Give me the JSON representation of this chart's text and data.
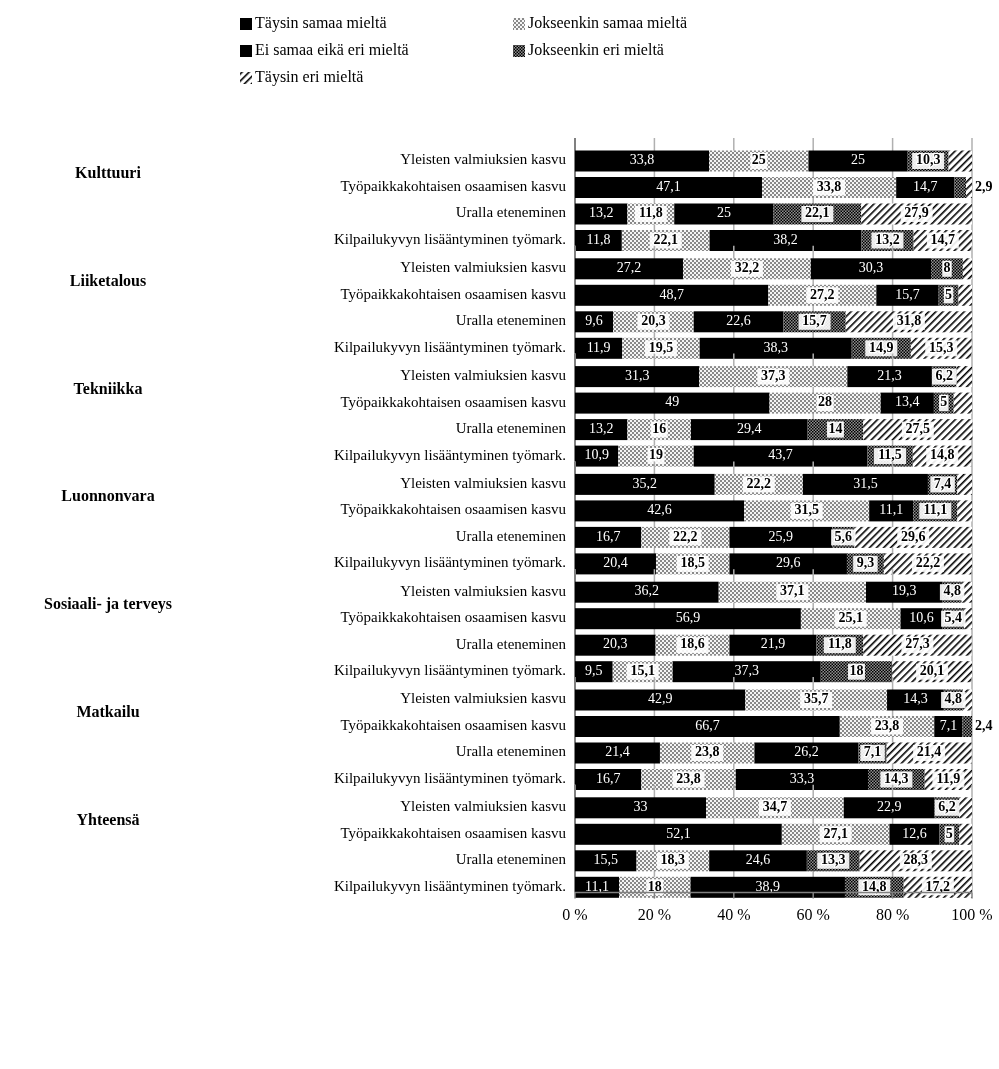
{
  "chart_data": [
    {
      "type": "bar",
      "orientation": "horizontal",
      "stacked": true,
      "ylabel": "Kulttuuri",
      "categories": [
        "Yleisten valmiuksien kasvu",
        "Työpaikkakohtaisen osaamisen kasvu",
        "Uralla eteneminen",
        "Kilpailukyvyn lisääntyminen työmark."
      ],
      "legend": "top",
      "grid": "x",
      "tick_labels": "y",
      "xlim": [
        0,
        100
      ],
      "xticks": [
        {
          "value": 0,
          "label": null
        },
        {
          "value": 20,
          "label": null
        },
        {
          "value": 40,
          "label": null
        },
        {
          "value": 60,
          "label": null
        },
        {
          "value": 80,
          "label": null
        },
        {
          "value": 100,
          "label": null
        }
      ],
      "series": [
        {
          "name": "Täysin samaa mieltä",
          "color": "#000000",
          "values": [
            33.8,
            47.1,
            13.2,
            11.8
          ],
          "value_labels": [
            "33,8",
            "47,1",
            "13,2",
            "11,8"
          ]
        },
        {
          "name": "Jokseenkin samaa mieltä",
          "color": "#e0e0e0",
          "values": [
            25,
            33.8,
            11.8,
            22.1
          ],
          "value_labels": [
            "25",
            "33,8",
            "11,8",
            "22,1"
          ]
        },
        {
          "name": "Ei samaa eikä eri mieltä",
          "color": "#000000",
          "values": [
            25,
            14.7,
            25,
            38.2
          ],
          "value_labels": [
            "25",
            "14,7",
            "25",
            "38,2"
          ]
        },
        {
          "name": "Jokseenkin eri mieltä",
          "color": "#909090",
          "values": [
            10.3,
            2.9,
            22.1,
            13.2
          ],
          "value_labels": [
            "10,3",
            "2,9",
            "22,1",
            "13,2"
          ]
        },
        {
          "name": "Täysin eri mieltä",
          "color": "#ffffff",
          "values": [
            5.9,
            1.5,
            27.9,
            14.7
          ],
          "value_labels": [
            null,
            null,
            "27,9",
            "14,7"
          ]
        }
      ]
    },
    {
      "type": "bar",
      "orientation": "horizontal",
      "stacked": true,
      "ylabel": "Liiketalous",
      "categories": [
        "Yleisten valmiuksien kasvu",
        "Työpaikkakohtaisen osaamisen kasvu",
        "Uralla eteneminen",
        "Kilpailukyvyn lisääntyminen työmark."
      ],
      "grid": "x",
      "tick_labels": "y",
      "xlim": [
        0,
        100
      ],
      "xticks": [
        {
          "value": 0,
          "label": null
        },
        {
          "value": 20,
          "label": null
        },
        {
          "value": 40,
          "label": null
        },
        {
          "value": 60,
          "label": null
        },
        {
          "value": 80,
          "label": null
        },
        {
          "value": 100,
          "label": null
        }
      ],
      "series": [
        {
          "color": "#000000",
          "values": [
            27.2,
            48.7,
            9.6,
            11.9
          ],
          "value_labels": [
            "27,2",
            "48,7",
            "9,6",
            "11,9"
          ]
        },
        {
          "color": "#e0e0e0",
          "values": [
            32.2,
            27.2,
            20.3,
            19.5
          ],
          "value_labels": [
            "32,2",
            "27,2",
            "20,3",
            "19,5"
          ]
        },
        {
          "color": "#000000",
          "values": [
            30.3,
            15.7,
            22.6,
            38.3
          ],
          "value_labels": [
            "30,3",
            "15,7",
            "22,6",
            "38,3"
          ]
        },
        {
          "color": "#909090",
          "values": [
            8,
            5,
            15.7,
            14.9
          ],
          "value_labels": [
            "8",
            "5",
            "15,7",
            "14,9"
          ]
        },
        {
          "color": "#ffffff",
          "values": [
            2.3,
            3.4,
            31.8,
            15.3
          ],
          "value_labels": [
            null,
            null,
            "31,8",
            "15,3"
          ]
        }
      ]
    },
    {
      "type": "bar",
      "orientation": "horizontal",
      "stacked": true,
      "ylabel": "Tekniikka",
      "categories": [
        "Yleisten valmiuksien kasvu",
        "Työpaikkakohtaisen osaamisen kasvu",
        "Uralla eteneminen",
        "Kilpailukyvyn lisääntyminen työmark."
      ],
      "grid": "x",
      "tick_labels": "y",
      "xlim": [
        0,
        100
      ],
      "xticks": [
        {
          "value": 0,
          "label": null
        },
        {
          "value": 20,
          "label": null
        },
        {
          "value": 40,
          "label": null
        },
        {
          "value": 60,
          "label": null
        },
        {
          "value": 80,
          "label": null
        },
        {
          "value": 100,
          "label": null
        }
      ],
      "series": [
        {
          "color": "#000000",
          "values": [
            31.3,
            49,
            13.2,
            10.9
          ],
          "value_labels": [
            "31,3",
            "49",
            "13,2",
            "10,9"
          ]
        },
        {
          "color": "#e0e0e0",
          "values": [
            37.3,
            28,
            16,
            19
          ],
          "value_labels": [
            "37,3",
            "28",
            "16",
            "19"
          ]
        },
        {
          "color": "#000000",
          "values": [
            21.3,
            13.4,
            29.4,
            43.7
          ],
          "value_labels": [
            "21,3",
            "13,4",
            "29,4",
            "43,7"
          ]
        },
        {
          "color": "#909090",
          "values": [
            6.2,
            5,
            14,
            11.5
          ],
          "value_labels": [
            "6,2",
            "5",
            "14",
            "11,5"
          ]
        },
        {
          "color": "#ffffff",
          "values": [
            3.9,
            4.6,
            27.5,
            14.8
          ],
          "value_labels": [
            null,
            null,
            "27,5",
            "14,8"
          ]
        }
      ]
    },
    {
      "type": "bar",
      "orientation": "horizontal",
      "stacked": true,
      "ylabel": "Luonnonvara",
      "categories": [
        "Yleisten valmiuksien kasvu",
        "Työpaikkakohtaisen osaamisen kasvu",
        "Uralla eteneminen",
        "Kilpailukyvyn lisääntyminen työmark."
      ],
      "grid": "x",
      "tick_labels": "y",
      "xlim": [
        0,
        100
      ],
      "xticks": [
        {
          "value": 0,
          "label": null
        },
        {
          "value": 20,
          "label": null
        },
        {
          "value": 40,
          "label": null
        },
        {
          "value": 60,
          "label": null
        },
        {
          "value": 80,
          "label": null
        },
        {
          "value": 100,
          "label": null
        }
      ],
      "series": [
        {
          "color": "#000000",
          "values": [
            35.2,
            42.6,
            16.7,
            20.4
          ],
          "value_labels": [
            "35,2",
            "42,6",
            "16,7",
            "20,4"
          ]
        },
        {
          "color": "#e0e0e0",
          "values": [
            22.2,
            31.5,
            22.2,
            18.5
          ],
          "value_labels": [
            "22,2",
            "31,5",
            "22,2",
            "18,5"
          ]
        },
        {
          "color": "#000000",
          "values": [
            31.5,
            11.1,
            25.9,
            29.6
          ],
          "value_labels": [
            "31,5",
            "11,1",
            "25,9",
            "29,6"
          ]
        },
        {
          "color": "#909090",
          "values": [
            7.4,
            11.1,
            5.6,
            9.3
          ],
          "value_labels": [
            "7,4",
            "11,1",
            "5,6",
            "9,3"
          ]
        },
        {
          "color": "#ffffff",
          "values": [
            3.7,
            3.7,
            29.6,
            22.2
          ],
          "value_labels": [
            null,
            null,
            "29,6",
            "22,2"
          ]
        }
      ]
    },
    {
      "type": "bar",
      "orientation": "horizontal",
      "stacked": true,
      "ylabel": "Sosiaali- ja terveys",
      "categories": [
        "Yleisten valmiuksien kasvu",
        "Työpaikkakohtaisen osaamisen kasvu",
        "Uralla eteneminen",
        "Kilpailukyvyn lisääntyminen työmark."
      ],
      "grid": "x",
      "tick_labels": "y",
      "xlim": [
        0,
        100
      ],
      "xticks": [
        {
          "value": 0,
          "label": null
        },
        {
          "value": 20,
          "label": null
        },
        {
          "value": 40,
          "label": null
        },
        {
          "value": 60,
          "label": null
        },
        {
          "value": 80,
          "label": null
        },
        {
          "value": 100,
          "label": null
        }
      ],
      "series": [
        {
          "color": "#000000",
          "values": [
            36.2,
            56.9,
            20.3,
            9.5
          ],
          "value_labels": [
            "36,2",
            "56,9",
            "20,3",
            "9,5"
          ]
        },
        {
          "color": "#e0e0e0",
          "values": [
            37.1,
            25.1,
            18.6,
            15.1
          ],
          "value_labels": [
            "37,1",
            "25,1",
            "18,6",
            "15,1"
          ]
        },
        {
          "color": "#000000",
          "values": [
            19.3,
            10.6,
            21.9,
            37.3
          ],
          "value_labels": [
            "19,3",
            "10,6",
            "21,9",
            "37,3"
          ]
        },
        {
          "color": "#909090",
          "values": [
            4.8,
            5.4,
            11.8,
            18
          ],
          "value_labels": [
            "4,8",
            "5,4",
            "11,8",
            "18"
          ]
        },
        {
          "color": "#ffffff",
          "values": [
            2.6,
            2,
            27.3,
            20.1
          ],
          "value_labels": [
            null,
            null,
            "27,3",
            "20,1"
          ]
        }
      ]
    },
    {
      "type": "bar",
      "orientation": "horizontal",
      "stacked": true,
      "ylabel": "Matkailu",
      "categories": [
        "Yleisten valmiuksien kasvu",
        "Työpaikkakohtaisen osaamisen kasvu",
        "Uralla eteneminen",
        "Kilpailukyvyn lisääntyminen työmark."
      ],
      "grid": "x",
      "tick_labels": "y",
      "xlim": [
        0,
        100
      ],
      "xticks": [
        {
          "value": 0,
          "label": null
        },
        {
          "value": 20,
          "label": null
        },
        {
          "value": 40,
          "label": null
        },
        {
          "value": 60,
          "label": null
        },
        {
          "value": 80,
          "label": null
        },
        {
          "value": 100,
          "label": null
        }
      ],
      "series": [
        {
          "color": "#000000",
          "values": [
            42.9,
            66.7,
            21.4,
            16.7
          ],
          "value_labels": [
            "42,9",
            "66,7",
            "21,4",
            "16,7"
          ]
        },
        {
          "color": "#e0e0e0",
          "values": [
            35.7,
            23.8,
            23.8,
            23.8
          ],
          "value_labels": [
            "35,7",
            "23,8",
            "23,8",
            "23,8"
          ]
        },
        {
          "color": "#000000",
          "values": [
            14.3,
            7.1,
            26.2,
            33.3
          ],
          "value_labels": [
            "14,3",
            "7,1",
            "26,2",
            "33,3"
          ]
        },
        {
          "color": "#909090",
          "values": [
            4.8,
            2.4,
            7.1,
            14.3
          ],
          "value_labels": [
            "4,8",
            "2,4",
            "7,1",
            "14,3"
          ]
        },
        {
          "color": "#ffffff",
          "values": [
            2.3,
            0,
            21.4,
            11.9
          ],
          "value_labels": [
            null,
            null,
            "21,4",
            "11,9"
          ]
        }
      ]
    },
    {
      "type": "bar",
      "orientation": "horizontal",
      "stacked": true,
      "ylabel": "Yhteensä",
      "categories": [
        "Yleisten valmiuksien kasvu",
        "Työpaikkakohtaisen osaamisen kasvu",
        "Uralla eteneminen",
        "Kilpailukyvyn lisääntyminen työmark."
      ],
      "grid": "x",
      "xlim": [
        0,
        100
      ],
      "xticks": [
        {
          "value": 0,
          "label": "0 %"
        },
        {
          "value": 20,
          "label": "20 %"
        },
        {
          "value": 40,
          "label": "40 %"
        },
        {
          "value": 60,
          "label": "60 %"
        },
        {
          "value": 80,
          "label": "80 %"
        },
        {
          "value": 100,
          "label": "100 %"
        }
      ],
      "series": [
        {
          "color": "#000000",
          "values": [
            33,
            52.1,
            15.5,
            11.1
          ],
          "value_labels": [
            "33",
            "52,1",
            "15,5",
            "11,1"
          ]
        },
        {
          "color": "#e0e0e0",
          "values": [
            34.7,
            27.1,
            18.3,
            18
          ],
          "value_labels": [
            "34,7",
            "27,1",
            "18,3",
            "18"
          ]
        },
        {
          "color": "#000000",
          "values": [
            22.9,
            12.6,
            24.6,
            38.9
          ],
          "value_labels": [
            "22,9",
            "12,6",
            "24,6",
            "38,9"
          ]
        },
        {
          "color": "#909090",
          "values": [
            6.2,
            5,
            13.3,
            14.8
          ],
          "value_labels": [
            "6,2",
            "5",
            "13,3",
            "14,8"
          ]
        },
        {
          "color": "#ffffff",
          "values": [
            3.2,
            3.2,
            28.3,
            17.2
          ],
          "value_labels": [
            null,
            null,
            "28,3",
            "17,2"
          ]
        }
      ]
    }
  ]
}
